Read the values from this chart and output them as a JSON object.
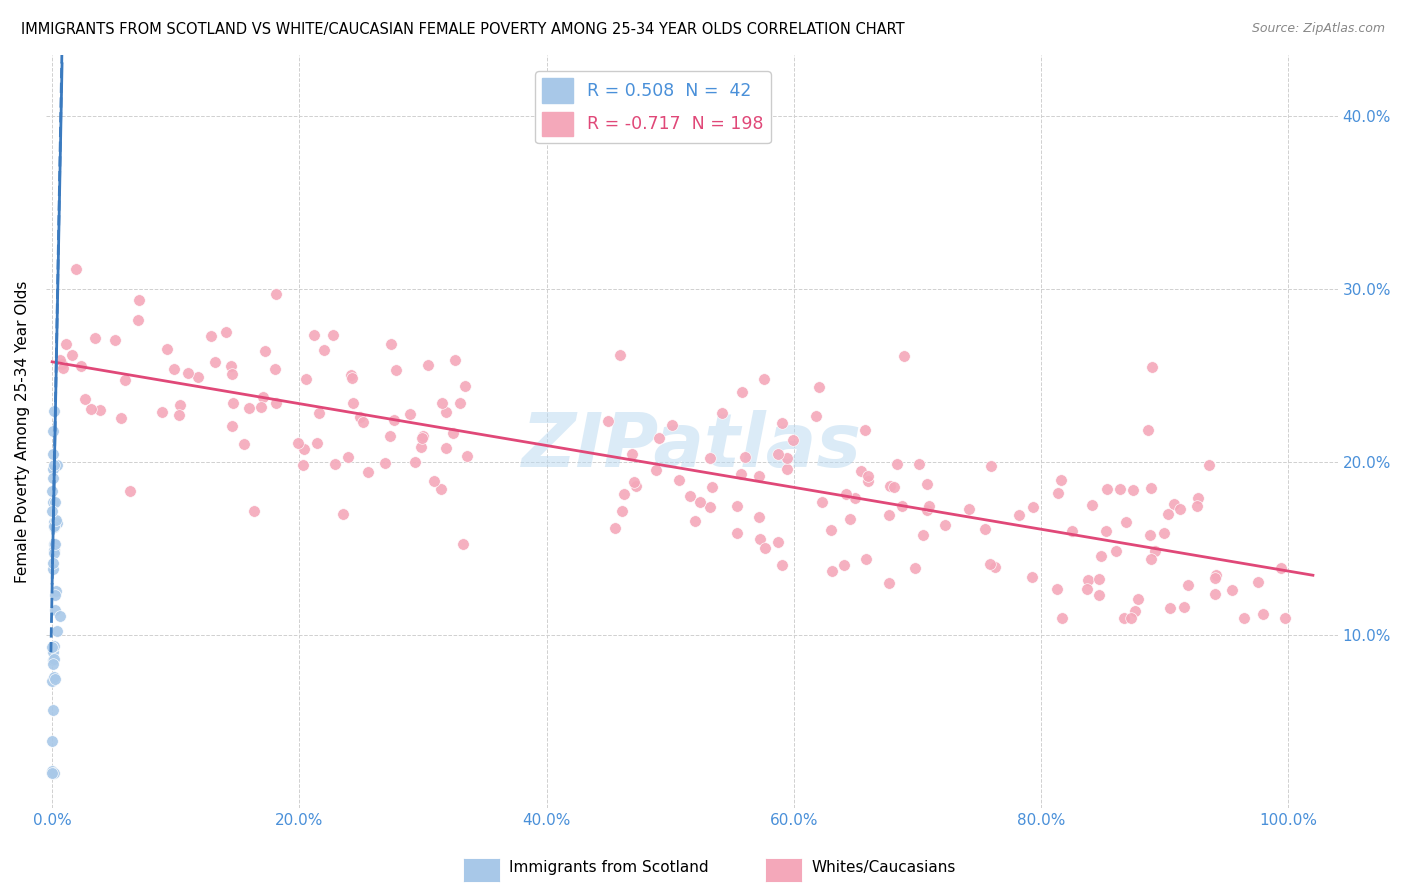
{
  "title": "IMMIGRANTS FROM SCOTLAND VS WHITE/CAUCASIAN FEMALE POVERTY AMONG 25-34 YEAR OLDS CORRELATION CHART",
  "source": "Source: ZipAtlas.com",
  "ylabel": "Female Poverty Among 25-34 Year Olds",
  "ylim": [
    0.0,
    0.435
  ],
  "xlim": [
    -0.005,
    1.04
  ],
  "R_scotland": 0.508,
  "N_scotland": 42,
  "R_white": -0.717,
  "N_white": 198,
  "color_scotland": "#a8c8e8",
  "color_white": "#f4a8ba",
  "color_scotland_line": "#3a7abf",
  "color_white_line": "#e04878",
  "color_axis_blue": "#4a90d9",
  "watermark": "ZIPatlas",
  "legend_label_scot": "Immigrants from Scotland",
  "legend_label_white": "Whites/Caucasians"
}
